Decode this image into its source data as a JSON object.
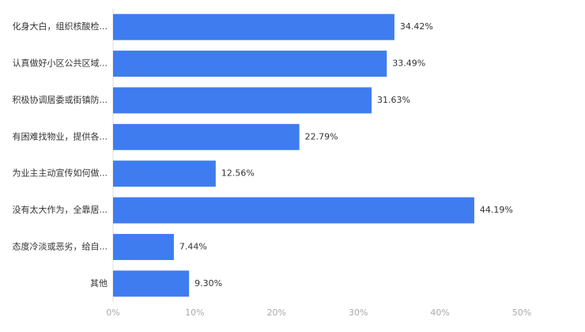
{
  "chart_data": {
    "type": "barh",
    "categories": [
      "化身大白，组织核酸检...",
      "认真做好小区公共区域...",
      "积极协调居委或街镇防...",
      "有困难找物业，提供各...",
      "为业主主动宣传如何做...",
      "没有太大作为，全靠居...",
      "态度冷淡或恶劣，给自...",
      "其他"
    ],
    "values": [
      34.42,
      33.49,
      31.63,
      22.79,
      12.56,
      44.19,
      7.44,
      9.3
    ],
    "value_labels": [
      "34.42%",
      "33.49%",
      "31.63%",
      "22.79%",
      "12.56%",
      "44.19%",
      "7.44%",
      "9.30%"
    ],
    "color": "#3f7cf0",
    "xlim": [
      0,
      50
    ],
    "xticks": [
      {
        "value": 0,
        "label": "0%"
      },
      {
        "value": 10,
        "label": "10%"
      },
      {
        "value": 20,
        "label": "20%"
      },
      {
        "value": 30,
        "label": "30%"
      },
      {
        "value": 40,
        "label": "40%"
      },
      {
        "value": 50,
        "label": "50%"
      }
    ],
    "grid": false
  }
}
